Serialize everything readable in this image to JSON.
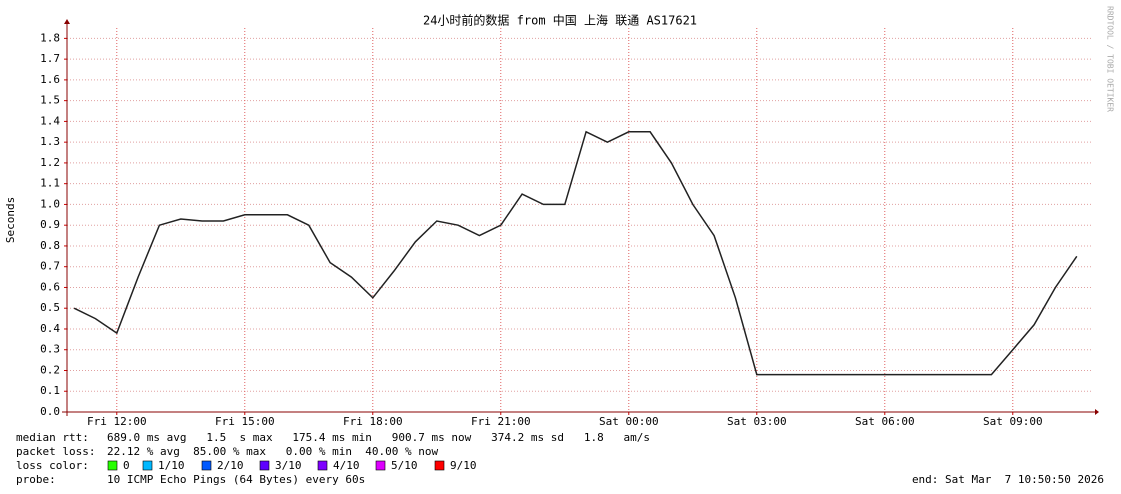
{
  "chart_data": {
    "type": "line",
    "title": "24小时前的数据 from 中国 上海 联通 AS17621",
    "y_label": "Seconds",
    "watermark": "RRDTOOL / TOBI OETIKER",
    "xlim": [
      10.8333,
      34.8333
    ],
    "ylim": [
      0,
      1.85
    ],
    "xticks": [
      {
        "value": 12,
        "label": "Fri 12:00"
      },
      {
        "value": 15,
        "label": "Fri 15:00"
      },
      {
        "value": 18,
        "label": "Fri 18:00"
      },
      {
        "value": 21,
        "label": "Fri 21:00"
      },
      {
        "value": 24,
        "label": "Sat 00:00"
      },
      {
        "value": 27,
        "label": "Sat 03:00"
      },
      {
        "value": 30,
        "label": "Sat 06:00"
      },
      {
        "value": 33,
        "label": "Sat 09:00"
      }
    ],
    "yticks": [
      {
        "value": 0,
        "label": "0.0"
      },
      0.1,
      0.2,
      0.3,
      0.4,
      0.5,
      0.6,
      0.7,
      0.8,
      0.9,
      {
        "value": 1,
        "label": "1.0"
      },
      1.1,
      1.2,
      1.3,
      1.4,
      1.5,
      1.6,
      1.7,
      1.8
    ],
    "grid": true,
    "x": [
      11,
      11.5,
      12,
      12.5,
      13,
      13.5,
      14,
      14.5,
      15,
      15.5,
      16,
      16.5,
      17,
      17.5,
      18,
      18.5,
      19,
      19.5,
      20,
      20.5,
      21,
      21.5,
      22,
      22.5,
      23,
      23.5,
      24,
      24.5,
      25,
      25.5,
      26,
      26.5,
      27,
      27.5,
      28,
      28.5,
      29,
      29.5,
      30,
      30.5,
      31,
      31.5,
      32,
      32.5,
      33,
      33.5,
      34,
      34.5
    ],
    "series": [
      {
        "color": "#222222",
        "values": [
          0.5,
          0.45,
          0.38,
          0.65,
          0.9,
          0.93,
          0.92,
          0.92,
          0.95,
          0.95,
          0.95,
          0.9,
          0.72,
          0.65,
          0.55,
          0.68,
          0.82,
          0.92,
          0.9,
          0.85,
          0.9,
          1.05,
          1.0,
          1.0,
          1.35,
          1.3,
          1.35,
          1.35,
          1.2,
          1.0,
          0.85,
          0.55,
          0.18,
          0.18,
          0.18,
          0.18,
          0.18,
          0.18,
          0.18,
          0.18,
          0.18,
          0.18,
          0.18,
          0.18,
          0.3,
          0.42,
          0.6,
          0.75
        ]
      }
    ],
    "stats": [
      {
        "label": "median rtt:",
        "text": "689.0 ms avg   1.5  s max   175.4 ms min   900.7 ms now   374.2 ms sd   1.8   am/s"
      },
      {
        "label": "packet loss:",
        "text": "22.12 % avg  85.00 % max   0.00 % min  40.00 % now"
      }
    ],
    "loss_legend": {
      "label": "loss color:",
      "items": [
        {
          "label": "0",
          "color": "#26ff00"
        },
        {
          "label": "1/10",
          "color": "#00b8ff"
        },
        {
          "label": "2/10",
          "color": "#0059ff"
        },
        {
          "label": "3/10",
          "color": "#5e00ff"
        },
        {
          "label": "4/10",
          "color": "#7e00ff"
        },
        {
          "label": "5/10",
          "color": "#dd00ff"
        },
        {
          "label": "9/10",
          "color": "#ff0000"
        }
      ]
    },
    "probe": {
      "label": "probe:",
      "text": "10 ICMP Echo Pings (64 Bytes) every 60s"
    },
    "end": "end: Sat Mar  7 10:50:50 2026"
  }
}
